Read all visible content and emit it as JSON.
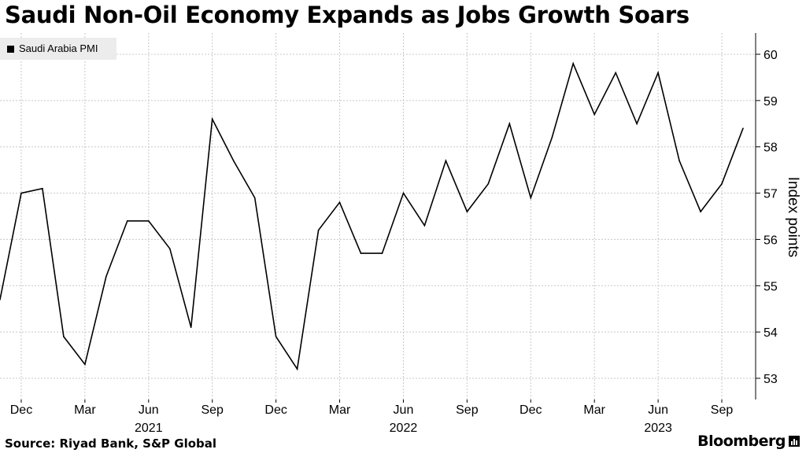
{
  "header": {
    "title": "Saudi Non-Oil Economy Expands as Jobs Growth Soars"
  },
  "legend": {
    "label": "Saudi Arabia PMI"
  },
  "footer": {
    "source": "Source: Riyad Bank, S&P Global",
    "brand": "Bloomberg"
  },
  "icons": {
    "brand_mark": "bar-chart-icon"
  },
  "colors": {
    "line": "#000000",
    "grid": "#c8c8c8",
    "legend_bg": "#ececec"
  },
  "chart_data": {
    "type": "line",
    "title": "Saudi Non-Oil Economy Expands as Jobs Growth Soars",
    "xlabel": "",
    "ylabel": "Index points",
    "ylim": [
      53,
      60
    ],
    "y_ticks": [
      53,
      54,
      55,
      56,
      57,
      58,
      59,
      60
    ],
    "grid": true,
    "legend_position": "top-left",
    "x_tick_labels": [
      "Dec",
      "Mar",
      "Jun",
      "Sep",
      "Dec",
      "Mar",
      "Jun",
      "Sep",
      "Dec",
      "Mar",
      "Jun",
      "Sep"
    ],
    "x_tick_months": [
      "2020-12",
      "2021-03",
      "2021-06",
      "2021-09",
      "2021-12",
      "2022-03",
      "2022-06",
      "2022-09",
      "2022-12",
      "2023-03",
      "2023-06",
      "2023-09"
    ],
    "year_labels": [
      {
        "label": "2021",
        "month": "2021-06"
      },
      {
        "label": "2022",
        "month": "2022-06"
      },
      {
        "label": "2023",
        "month": "2023-06"
      }
    ],
    "series": [
      {
        "name": "Saudi Arabia PMI",
        "x": [
          "2020-11",
          "2020-12",
          "2021-01",
          "2021-02",
          "2021-03",
          "2021-04",
          "2021-05",
          "2021-06",
          "2021-07",
          "2021-08",
          "2021-09",
          "2021-10",
          "2021-11",
          "2021-12",
          "2022-01",
          "2022-02",
          "2022-03",
          "2022-04",
          "2022-05",
          "2022-06",
          "2022-07",
          "2022-08",
          "2022-09",
          "2022-10",
          "2022-11",
          "2022-12",
          "2023-01",
          "2023-02",
          "2023-03",
          "2023-04",
          "2023-05",
          "2023-06",
          "2023-07",
          "2023-08",
          "2023-09",
          "2023-10"
        ],
        "values": [
          54.7,
          57.0,
          57.1,
          53.9,
          53.3,
          55.2,
          56.4,
          56.4,
          55.8,
          54.1,
          58.6,
          57.7,
          56.9,
          53.9,
          53.2,
          56.2,
          56.8,
          55.7,
          55.7,
          57.0,
          56.3,
          57.7,
          56.6,
          57.2,
          58.5,
          56.9,
          58.2,
          59.8,
          58.7,
          59.6,
          58.5,
          59.6,
          57.7,
          56.6,
          57.2,
          58.4
        ]
      }
    ]
  }
}
